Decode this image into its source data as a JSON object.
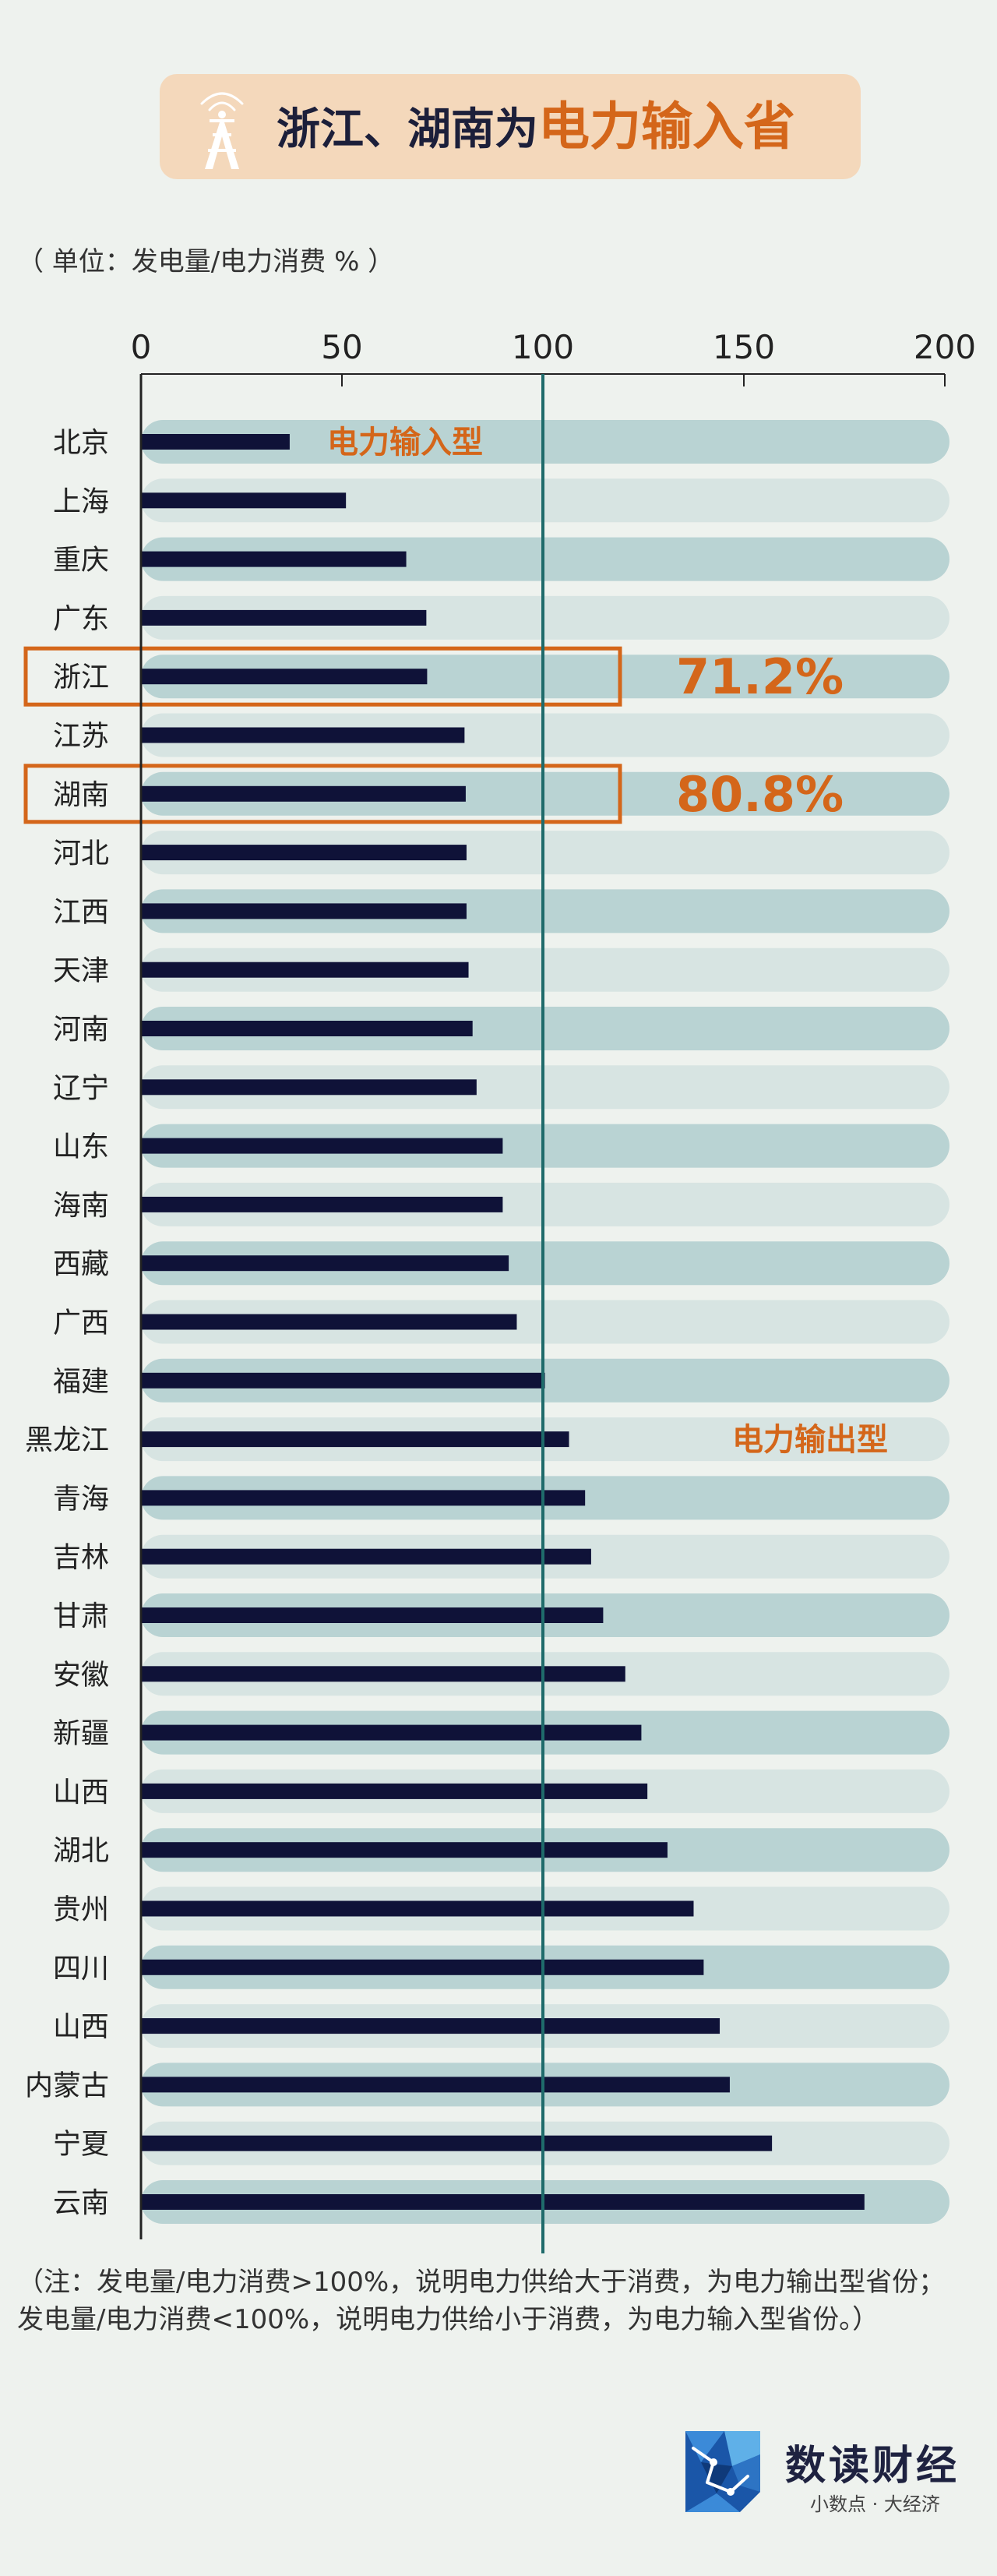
{
  "title": {
    "prefix": "浙江、湖南为",
    "highlight": "电力输入省"
  },
  "unit_note": "（ 单位：发电量/电力消费  % ）",
  "footnote": "（注：发电量/电力消费>100%，说明电力供给大于消费，为电力输出型省份；发电量/电力消费<100%，说明电力供给小于消费，为电力输入型省份。）",
  "brand": {
    "name": "数读财经",
    "slogan": "小数点 · 大经济"
  },
  "colors": {
    "bar": "#0f1238",
    "track_dark": "#b9d3d3",
    "track_light": "#d7e4e2",
    "accent": "#d4661a",
    "reference_line": "#1f6b6b",
    "title_bg": "#f4d8bb"
  },
  "chart_data": {
    "type": "bar",
    "orientation": "horizontal",
    "categories": [
      "北京",
      "上海",
      "重庆",
      "广东",
      "浙江",
      "江苏",
      "湖南",
      "河北",
      "江西",
      "天津",
      "河南",
      "辽宁",
      "山东",
      "海南",
      "西藏",
      "广西",
      "福建",
      "黑龙江",
      "青海",
      "吉林",
      "甘肃",
      "安徽",
      "新疆",
      "山西",
      "湖北",
      "贵州",
      "四川",
      "山西",
      "内蒙古",
      "宁夏",
      "云南"
    ],
    "values": [
      37,
      51,
      66,
      71,
      71.2,
      80.5,
      80.8,
      81,
      81,
      81.5,
      82.5,
      83.5,
      90,
      90,
      91.5,
      93.5,
      100.5,
      106.5,
      110.5,
      112,
      115,
      120.5,
      124.5,
      126,
      131,
      137.5,
      140,
      144,
      146.5,
      157,
      180
    ],
    "xlim": [
      0,
      200
    ],
    "xticks": [
      0,
      50,
      100,
      150,
      200
    ],
    "reference_line": 100,
    "axis_position": "top",
    "grid": false,
    "annotations": [
      {
        "text": "电力输入型"
      },
      {
        "text": "电力输出型"
      },
      {
        "text": "71.2%",
        "category": "浙江"
      },
      {
        "text": "80.8%",
        "category": "湖南"
      }
    ],
    "highlighted": [
      "浙江",
      "湖南"
    ]
  }
}
